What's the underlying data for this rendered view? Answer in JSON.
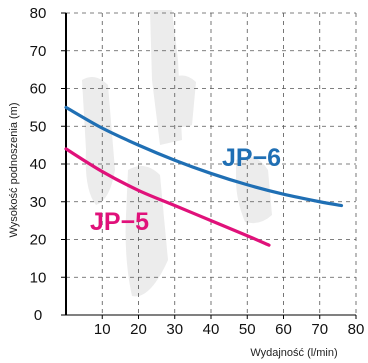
{
  "chart_data": {
    "type": "line",
    "xlabel": "Wydajność (l/min)",
    "ylabel": "Wysokość podnoszenia (m)",
    "xlim": [
      0,
      80
    ],
    "ylim": [
      0,
      80
    ],
    "x_ticks": [
      "10",
      "20",
      "30",
      "40",
      "50",
      "60",
      "70",
      "80"
    ],
    "y_ticks": [
      "0",
      "10",
      "20",
      "30",
      "40",
      "50",
      "60",
      "70",
      "80"
    ],
    "grid": "dashed",
    "series": [
      {
        "name": "JP−6",
        "color": "#1f6fb4",
        "x": [
          0,
          10,
          20,
          30,
          40,
          50,
          60,
          70,
          76
        ],
        "y": [
          55,
          49.5,
          45,
          41,
          37.5,
          34.5,
          32,
          30,
          29
        ]
      },
      {
        "name": "JP−5",
        "color": "#e0117a",
        "x": [
          0,
          10,
          20,
          30,
          40,
          50,
          56
        ],
        "y": [
          44,
          38,
          33,
          29,
          25,
          21,
          18.5
        ]
      }
    ]
  }
}
